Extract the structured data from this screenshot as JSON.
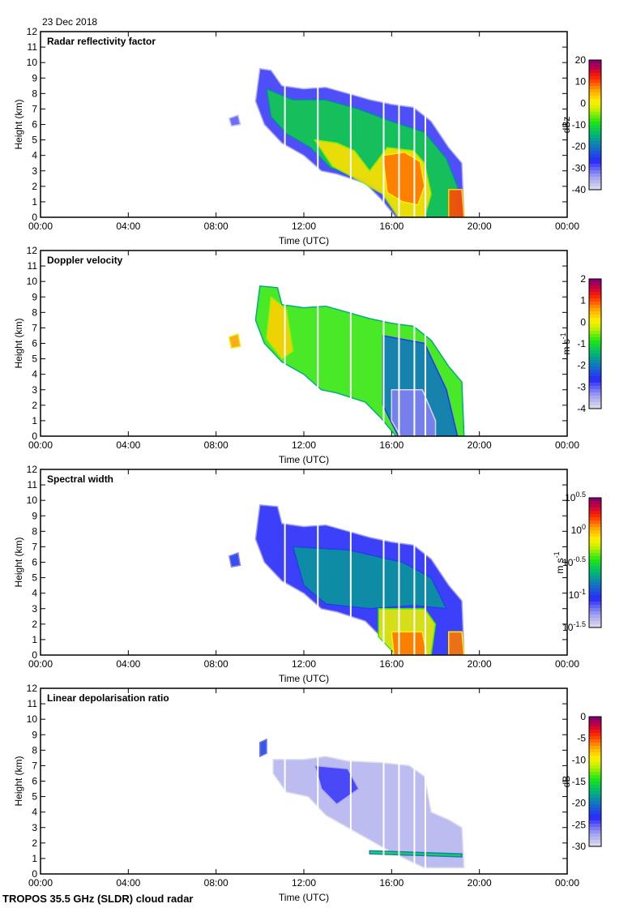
{
  "page": {
    "date": "23 Dec 2018",
    "footer": "TROPOS 35.5 GHz (SLDR) cloud radar"
  },
  "chart_data": [
    {
      "type": "heatmap",
      "title": "Radar reflectivity factor",
      "xlabel": "Time (UTC)",
      "ylabel": "Height (km)",
      "xlim": [
        0,
        24
      ],
      "ylim": [
        0,
        12
      ],
      "x_ticks": [
        "00:00",
        "04:00",
        "08:00",
        "12:00",
        "16:00",
        "20:00",
        "00:00"
      ],
      "y_ticks": [
        "0",
        "1",
        "2",
        "3",
        "4",
        "5",
        "6",
        "7",
        "8",
        "9",
        "10",
        "11",
        "12"
      ],
      "colorbar": {
        "label": "dBz",
        "min": -40,
        "max": 20,
        "ticks": [
          "20",
          "10",
          "0",
          "-10",
          "-20",
          "-30",
          "-40"
        ]
      },
      "features": [
        {
          "name": "main-cloud-edge",
          "value": -28,
          "points": [
            [
              10.0,
              9.6
            ],
            [
              10.5,
              9.5
            ],
            [
              11.0,
              8.5
            ],
            [
              12.0,
              8.3
            ],
            [
              13.0,
              8.4
            ],
            [
              14.0,
              8.0
            ],
            [
              15.0,
              7.6
            ],
            [
              16.0,
              7.3
            ],
            [
              17.0,
              7.1
            ],
            [
              17.8,
              6.2
            ],
            [
              18.6,
              4.5
            ],
            [
              19.2,
              3.5
            ],
            [
              19.3,
              0
            ],
            [
              16.2,
              0
            ],
            [
              15.5,
              1.2
            ],
            [
              14.8,
              2.2
            ],
            [
              13.5,
              2.8
            ],
            [
              12.8,
              3.0
            ],
            [
              12.0,
              4.0
            ],
            [
              11.0,
              4.8
            ],
            [
              10.2,
              6.0
            ],
            [
              9.8,
              7.5
            ]
          ]
        },
        {
          "name": "mid-layer",
          "value": -12,
          "points": [
            [
              10.3,
              8.3
            ],
            [
              11.5,
              7.6
            ],
            [
              13.0,
              7.6
            ],
            [
              14.5,
              7.0
            ],
            [
              16.0,
              6.2
            ],
            [
              17.5,
              5.5
            ],
            [
              18.5,
              3.8
            ],
            [
              19.0,
              2.0
            ],
            [
              19.0,
              0
            ],
            [
              16.4,
              0
            ],
            [
              15.5,
              1.8
            ],
            [
              14.5,
              2.6
            ],
            [
              13.2,
              3.2
            ],
            [
              12.3,
              4.5
            ],
            [
              11.2,
              5.4
            ],
            [
              10.5,
              6.5
            ]
          ]
        },
        {
          "name": "warm-core",
          "value": 2,
          "points": [
            [
              12.5,
              5.0
            ],
            [
              13.5,
              4.8
            ],
            [
              14.3,
              4.3
            ],
            [
              15.0,
              3.0
            ],
            [
              15.8,
              4.5
            ],
            [
              17.0,
              4.3
            ],
            [
              17.5,
              3.5
            ],
            [
              17.8,
              1.5
            ],
            [
              17.5,
              0
            ],
            [
              16.3,
              0
            ],
            [
              15.6,
              1.5
            ],
            [
              14.5,
              2.4
            ],
            [
              13.3,
              3.3
            ]
          ]
        },
        {
          "name": "echo-core",
          "value": 8,
          "points": [
            [
              15.6,
              4.0
            ],
            [
              16.6,
              4.2
            ],
            [
              17.3,
              3.6
            ],
            [
              17.5,
              2.0
            ],
            [
              17.2,
              0.8
            ],
            [
              16.5,
              1.0
            ],
            [
              15.8,
              1.6
            ]
          ]
        },
        {
          "name": "late-shower",
          "value": 10,
          "points": [
            [
              18.6,
              1.8
            ],
            [
              19.2,
              1.8
            ],
            [
              19.3,
              0
            ],
            [
              18.6,
              0
            ]
          ]
        },
        {
          "name": "isolated-echo",
          "value": -30,
          "points": [
            [
              8.6,
              6.4
            ],
            [
              9.0,
              6.6
            ],
            [
              9.1,
              6.0
            ],
            [
              8.7,
              5.9
            ]
          ]
        }
      ]
    },
    {
      "type": "heatmap",
      "title": "Doppler velocity",
      "xlabel": "Time (UTC)",
      "ylabel": "Height (km)",
      "xlim": [
        0,
        24
      ],
      "ylim": [
        0,
        12
      ],
      "x_ticks": [
        "00:00",
        "04:00",
        "08:00",
        "12:00",
        "16:00",
        "20:00",
        "00:00"
      ],
      "y_ticks": [
        "0",
        "1",
        "2",
        "3",
        "4",
        "5",
        "6",
        "7",
        "8",
        "9",
        "10",
        "11",
        "12"
      ],
      "colorbar": {
        "label": "m s-1",
        "min": -4,
        "max": 2,
        "ticks": [
          "2",
          "1",
          "0",
          "-1",
          "-2",
          "-3",
          "-4"
        ]
      },
      "features": [
        {
          "name": "cloud-body",
          "value": -0.8,
          "points": [
            [
              10.0,
              9.7
            ],
            [
              10.8,
              9.6
            ],
            [
              11.0,
              8.5
            ],
            [
              12.0,
              8.3
            ],
            [
              13.0,
              8.4
            ],
            [
              14.0,
              8.0
            ],
            [
              15.0,
              7.6
            ],
            [
              16.0,
              7.3
            ],
            [
              17.0,
              7.1
            ],
            [
              17.8,
              6.2
            ],
            [
              18.6,
              4.5
            ],
            [
              19.2,
              3.5
            ],
            [
              19.3,
              0
            ],
            [
              16.2,
              0
            ],
            [
              15.5,
              1.2
            ],
            [
              14.8,
              2.2
            ],
            [
              13.5,
              2.8
            ],
            [
              12.8,
              3.0
            ],
            [
              12.0,
              4.0
            ],
            [
              11.0,
              4.8
            ],
            [
              10.2,
              6.0
            ],
            [
              9.8,
              7.5
            ]
          ]
        },
        {
          "name": "early-updraft",
          "value": 0.3,
          "points": [
            [
              10.5,
              9.0
            ],
            [
              11.2,
              8.2
            ],
            [
              11.5,
              5.5
            ],
            [
              11.0,
              5.0
            ],
            [
              10.3,
              6.3
            ]
          ]
        },
        {
          "name": "lower-fall-streak",
          "value": -2.0,
          "points": [
            [
              15.6,
              6.5
            ],
            [
              17.5,
              6.0
            ],
            [
              18.5,
              3.0
            ],
            [
              19.0,
              0
            ],
            [
              16.3,
              0
            ],
            [
              15.6,
              2.0
            ]
          ]
        },
        {
          "name": "heavy-fall-core",
          "value": -3.2,
          "points": [
            [
              16.0,
              3.0
            ],
            [
              17.4,
              3.0
            ],
            [
              18.0,
              1.0
            ],
            [
              18.0,
              0
            ],
            [
              16.4,
              0
            ],
            [
              16.0,
              1.0
            ]
          ]
        },
        {
          "name": "isolated-echo",
          "value": 0.6,
          "points": [
            [
              8.6,
              6.4
            ],
            [
              9.0,
              6.6
            ],
            [
              9.1,
              5.8
            ],
            [
              8.7,
              5.7
            ]
          ]
        }
      ]
    },
    {
      "type": "heatmap",
      "title": "Spectral width",
      "xlabel": "Time (UTC)",
      "ylabel": "Height (km)",
      "xlim": [
        0,
        24
      ],
      "ylim": [
        0,
        12
      ],
      "x_ticks": [
        "00:00",
        "04:00",
        "08:00",
        "12:00",
        "16:00",
        "20:00",
        "00:00"
      ],
      "y_ticks": [
        "0",
        "1",
        "2",
        "3",
        "4",
        "5",
        "6",
        "7",
        "8",
        "9",
        "10",
        "11",
        "12"
      ],
      "colorbar": {
        "label": "m s-1",
        "scale": "log10",
        "min": -1.5,
        "max": 0.5,
        "ticks": [
          "10^0.5",
          "10^0",
          "10^-0.5",
          "10^-1",
          "10^-1.5"
        ]
      },
      "features": [
        {
          "name": "cloud-body",
          "value": -1.05,
          "points": [
            [
              10.0,
              9.7
            ],
            [
              10.8,
              9.6
            ],
            [
              11.0,
              8.5
            ],
            [
              12.0,
              8.3
            ],
            [
              13.0,
              8.4
            ],
            [
              14.0,
              8.0
            ],
            [
              15.0,
              7.6
            ],
            [
              16.0,
              7.3
            ],
            [
              17.0,
              7.1
            ],
            [
              17.8,
              6.2
            ],
            [
              18.6,
              4.5
            ],
            [
              19.2,
              3.5
            ],
            [
              19.3,
              0
            ],
            [
              16.2,
              0
            ],
            [
              15.5,
              1.2
            ],
            [
              14.8,
              2.2
            ],
            [
              13.5,
              2.8
            ],
            [
              12.8,
              3.0
            ],
            [
              12.0,
              4.0
            ],
            [
              11.0,
              4.8
            ],
            [
              10.2,
              6.0
            ],
            [
              9.8,
              7.5
            ]
          ]
        },
        {
          "name": "mid-layer",
          "value": -0.75,
          "points": [
            [
              11.5,
              7.0
            ],
            [
              14.0,
              6.8
            ],
            [
              16.5,
              6.0
            ],
            [
              17.8,
              5.0
            ],
            [
              18.5,
              3.0
            ],
            [
              17.0,
              3.2
            ],
            [
              15.0,
              3.0
            ],
            [
              13.0,
              3.3
            ],
            [
              12.0,
              4.5
            ]
          ]
        },
        {
          "name": "melting-zone",
          "value": -0.2,
          "points": [
            [
              15.4,
              3.0
            ],
            [
              17.5,
              3.0
            ],
            [
              18.0,
              2.0
            ],
            [
              17.8,
              0
            ],
            [
              16.2,
              0
            ],
            [
              15.4,
              1.2
            ]
          ]
        },
        {
          "name": "rain-core",
          "value": 0.1,
          "points": [
            [
              16.0,
              1.5
            ],
            [
              17.4,
              1.5
            ],
            [
              17.6,
              0
            ],
            [
              16.1,
              0
            ]
          ]
        },
        {
          "name": "late-shower",
          "value": 0.1,
          "points": [
            [
              18.6,
              1.5
            ],
            [
              19.2,
              1.5
            ],
            [
              19.3,
              0
            ],
            [
              18.6,
              0
            ]
          ]
        },
        {
          "name": "isolated-echo",
          "value": -1.0,
          "points": [
            [
              8.6,
              6.4
            ],
            [
              9.0,
              6.6
            ],
            [
              9.1,
              5.8
            ],
            [
              8.7,
              5.7
            ]
          ]
        }
      ]
    },
    {
      "type": "heatmap",
      "title": "Linear depolarisation ratio",
      "xlabel": "Time (UTC)",
      "ylabel": "Height (km)",
      "xlim": [
        0,
        24
      ],
      "ylim": [
        0,
        12
      ],
      "x_ticks": [
        "00:00",
        "04:00",
        "08:00",
        "12:00",
        "16:00",
        "20:00",
        "00:00"
      ],
      "y_ticks": [
        "0",
        "1",
        "2",
        "3",
        "4",
        "5",
        "6",
        "7",
        "8",
        "9",
        "10",
        "11",
        "12"
      ],
      "colorbar": {
        "label": "dB",
        "min": -30,
        "max": 0,
        "ticks": [
          "0",
          "-5",
          "-10",
          "-15",
          "-20",
          "-25",
          "-30"
        ]
      },
      "features": [
        {
          "name": "ice-cloud",
          "value": -28,
          "points": [
            [
              10.6,
              7.4
            ],
            [
              12.0,
              7.4
            ],
            [
              13.0,
              7.6
            ],
            [
              14.0,
              7.3
            ],
            [
              15.5,
              7.2
            ],
            [
              16.8,
              7.0
            ],
            [
              17.5,
              6.3
            ],
            [
              17.8,
              4.0
            ],
            [
              18.6,
              3.5
            ],
            [
              19.2,
              3.0
            ],
            [
              19.3,
              0.4
            ],
            [
              17.5,
              0.4
            ],
            [
              16.0,
              1.4
            ],
            [
              15.0,
              2.2
            ],
            [
              14.0,
              3.0
            ],
            [
              13.0,
              3.8
            ],
            [
              12.2,
              5.0
            ],
            [
              11.2,
              5.3
            ],
            [
              10.6,
              6.5
            ]
          ]
        },
        {
          "name": "dense-ice",
          "value": -24,
          "points": [
            [
              12.5,
              7.0
            ],
            [
              14.0,
              6.8
            ],
            [
              14.5,
              5.5
            ],
            [
              13.5,
              4.5
            ],
            [
              12.8,
              5.5
            ]
          ]
        },
        {
          "name": "melting-layer",
          "value": -16,
          "points": [
            [
              15.0,
              1.5
            ],
            [
              19.2,
              1.3
            ],
            [
              19.2,
              1.1
            ],
            [
              15.0,
              1.3
            ]
          ]
        },
        {
          "name": "top-fragment",
          "value": -22,
          "points": [
            [
              10.0,
              8.5
            ],
            [
              10.3,
              8.7
            ],
            [
              10.3,
              7.8
            ],
            [
              10.0,
              7.6
            ]
          ]
        }
      ]
    }
  ]
}
